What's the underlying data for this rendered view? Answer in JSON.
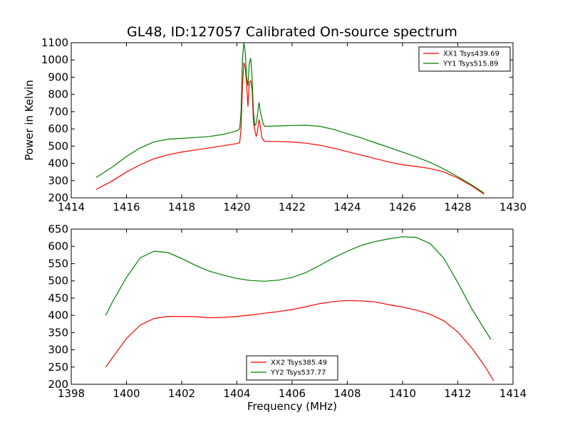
{
  "title": "GL48, ID:127057 Calibrated On-source spectrum",
  "chart_data": [
    {
      "type": "line",
      "xlabel": "",
      "ylabel": "Power in Kelvin",
      "xlim": [
        1414,
        1430
      ],
      "ylim": [
        200,
        1100
      ],
      "xticks": [
        1414,
        1416,
        1418,
        1420,
        1422,
        1424,
        1426,
        1428,
        1430
      ],
      "yticks": [
        200,
        300,
        400,
        500,
        600,
        700,
        800,
        900,
        1000,
        1100
      ],
      "legend_position": "top-right",
      "series": [
        {
          "name": "XX1 Tsys439.69",
          "color": "#ff0000",
          "points": [
            [
              1414.9,
              248
            ],
            [
              1415.5,
              300
            ],
            [
              1416,
              350
            ],
            [
              1416.5,
              392
            ],
            [
              1417,
              427
            ],
            [
              1417.5,
              450
            ],
            [
              1418,
              466
            ],
            [
              1418.5,
              478
            ],
            [
              1419,
              490
            ],
            [
              1419.5,
              502
            ],
            [
              1420,
              515
            ],
            [
              1420.1,
              520
            ],
            [
              1420.15,
              600
            ],
            [
              1420.2,
              850
            ],
            [
              1420.25,
              985
            ],
            [
              1420.3,
              960
            ],
            [
              1420.35,
              860
            ],
            [
              1420.4,
              730
            ],
            [
              1420.45,
              870
            ],
            [
              1420.5,
              880
            ],
            [
              1420.55,
              830
            ],
            [
              1420.6,
              640
            ],
            [
              1420.65,
              590
            ],
            [
              1420.7,
              555
            ],
            [
              1420.75,
              590
            ],
            [
              1420.8,
              655
            ],
            [
              1420.85,
              620
            ],
            [
              1420.9,
              550
            ],
            [
              1421,
              528
            ],
            [
              1421.5,
              527
            ],
            [
              1422,
              524
            ],
            [
              1422.5,
              517
            ],
            [
              1423,
              505
            ],
            [
              1423.5,
              488
            ],
            [
              1424,
              468
            ],
            [
              1424.5,
              448
            ],
            [
              1425,
              428
            ],
            [
              1425.5,
              408
            ],
            [
              1426,
              392
            ],
            [
              1426.5,
              382
            ],
            [
              1427,
              370
            ],
            [
              1427.5,
              350
            ],
            [
              1428,
              315
            ],
            [
              1428.5,
              270
            ],
            [
              1428.95,
              222
            ]
          ]
        },
        {
          "name": "YY1 Tsys515.89",
          "color": "#008000",
          "points": [
            [
              1414.9,
              318
            ],
            [
              1415.5,
              380
            ],
            [
              1416,
              440
            ],
            [
              1416.5,
              490
            ],
            [
              1417,
              525
            ],
            [
              1417.5,
              540
            ],
            [
              1418,
              545
            ],
            [
              1418.5,
              550
            ],
            [
              1419,
              556
            ],
            [
              1419.5,
              568
            ],
            [
              1420,
              588
            ],
            [
              1420.1,
              600
            ],
            [
              1420.15,
              700
            ],
            [
              1420.2,
              1000
            ],
            [
              1420.25,
              1100
            ],
            [
              1420.3,
              1050
            ],
            [
              1420.35,
              900
            ],
            [
              1420.4,
              850
            ],
            [
              1420.45,
              980
            ],
            [
              1420.5,
              1010
            ],
            [
              1420.55,
              900
            ],
            [
              1420.6,
              700
            ],
            [
              1420.65,
              620
            ],
            [
              1420.7,
              630
            ],
            [
              1420.75,
              690
            ],
            [
              1420.8,
              755
            ],
            [
              1420.85,
              700
            ],
            [
              1420.95,
              630
            ],
            [
              1421,
              615
            ],
            [
              1421.5,
              617
            ],
            [
              1422,
              620
            ],
            [
              1422.5,
              621
            ],
            [
              1423,
              615
            ],
            [
              1423.5,
              597
            ],
            [
              1424,
              572
            ],
            [
              1424.5,
              548
            ],
            [
              1425,
              520
            ],
            [
              1425.5,
              493
            ],
            [
              1426,
              465
            ],
            [
              1426.5,
              437
            ],
            [
              1427,
              405
            ],
            [
              1427.5,
              367
            ],
            [
              1428,
              322
            ],
            [
              1428.5,
              275
            ],
            [
              1428.95,
              228
            ]
          ]
        }
      ]
    },
    {
      "type": "line",
      "xlabel": "Frequency (MHz)",
      "ylabel": "",
      "xlim": [
        1398,
        1414
      ],
      "ylim": [
        200,
        650
      ],
      "xticks": [
        1398,
        1400,
        1402,
        1404,
        1406,
        1408,
        1410,
        1412,
        1414
      ],
      "yticks": [
        200,
        250,
        300,
        350,
        400,
        450,
        500,
        550,
        600,
        650
      ],
      "legend_position": "bottom-center",
      "series": [
        {
          "name": "XX2 Tsys385.49",
          "color": "#ff0000",
          "points": [
            [
              1399.25,
              250
            ],
            [
              1399.5,
              278
            ],
            [
              1400,
              333
            ],
            [
              1400.5,
              372
            ],
            [
              1401,
              391
            ],
            [
              1401.5,
              397
            ],
            [
              1402,
              397
            ],
            [
              1402.5,
              396
            ],
            [
              1403,
              393
            ],
            [
              1403.5,
              394
            ],
            [
              1404,
              397
            ],
            [
              1404.5,
              401
            ],
            [
              1405,
              406
            ],
            [
              1405.5,
              411
            ],
            [
              1406,
              417
            ],
            [
              1406.5,
              425
            ],
            [
              1407,
              434
            ],
            [
              1407.5,
              440
            ],
            [
              1408,
              443
            ],
            [
              1408.5,
              442
            ],
            [
              1409,
              439
            ],
            [
              1409.5,
              431
            ],
            [
              1410,
              424
            ],
            [
              1410.5,
              415
            ],
            [
              1411,
              403
            ],
            [
              1411.5,
              384
            ],
            [
              1412,
              352
            ],
            [
              1412.5,
              306
            ],
            [
              1413,
              250
            ],
            [
              1413.3,
              210
            ]
          ]
        },
        {
          "name": "YY2 Tsys537.77",
          "color": "#008000",
          "points": [
            [
              1399.25,
              400
            ],
            [
              1399.5,
              440
            ],
            [
              1400,
              510
            ],
            [
              1400.5,
              567
            ],
            [
              1401,
              586
            ],
            [
              1401.5,
              582
            ],
            [
              1402,
              565
            ],
            [
              1402.5,
              545
            ],
            [
              1403,
              528
            ],
            [
              1403.5,
              517
            ],
            [
              1404,
              507
            ],
            [
              1404.5,
              501
            ],
            [
              1405,
              499
            ],
            [
              1405.5,
              502
            ],
            [
              1406,
              510
            ],
            [
              1406.5,
              524
            ],
            [
              1407,
              545
            ],
            [
              1407.5,
              567
            ],
            [
              1408,
              586
            ],
            [
              1408.5,
              603
            ],
            [
              1409,
              614
            ],
            [
              1409.5,
              622
            ],
            [
              1410,
              628
            ],
            [
              1410.5,
              626
            ],
            [
              1411,
              608
            ],
            [
              1411.5,
              565
            ],
            [
              1412,
              495
            ],
            [
              1412.5,
              420
            ],
            [
              1413,
              355
            ],
            [
              1413.2,
              330
            ]
          ]
        }
      ]
    }
  ]
}
